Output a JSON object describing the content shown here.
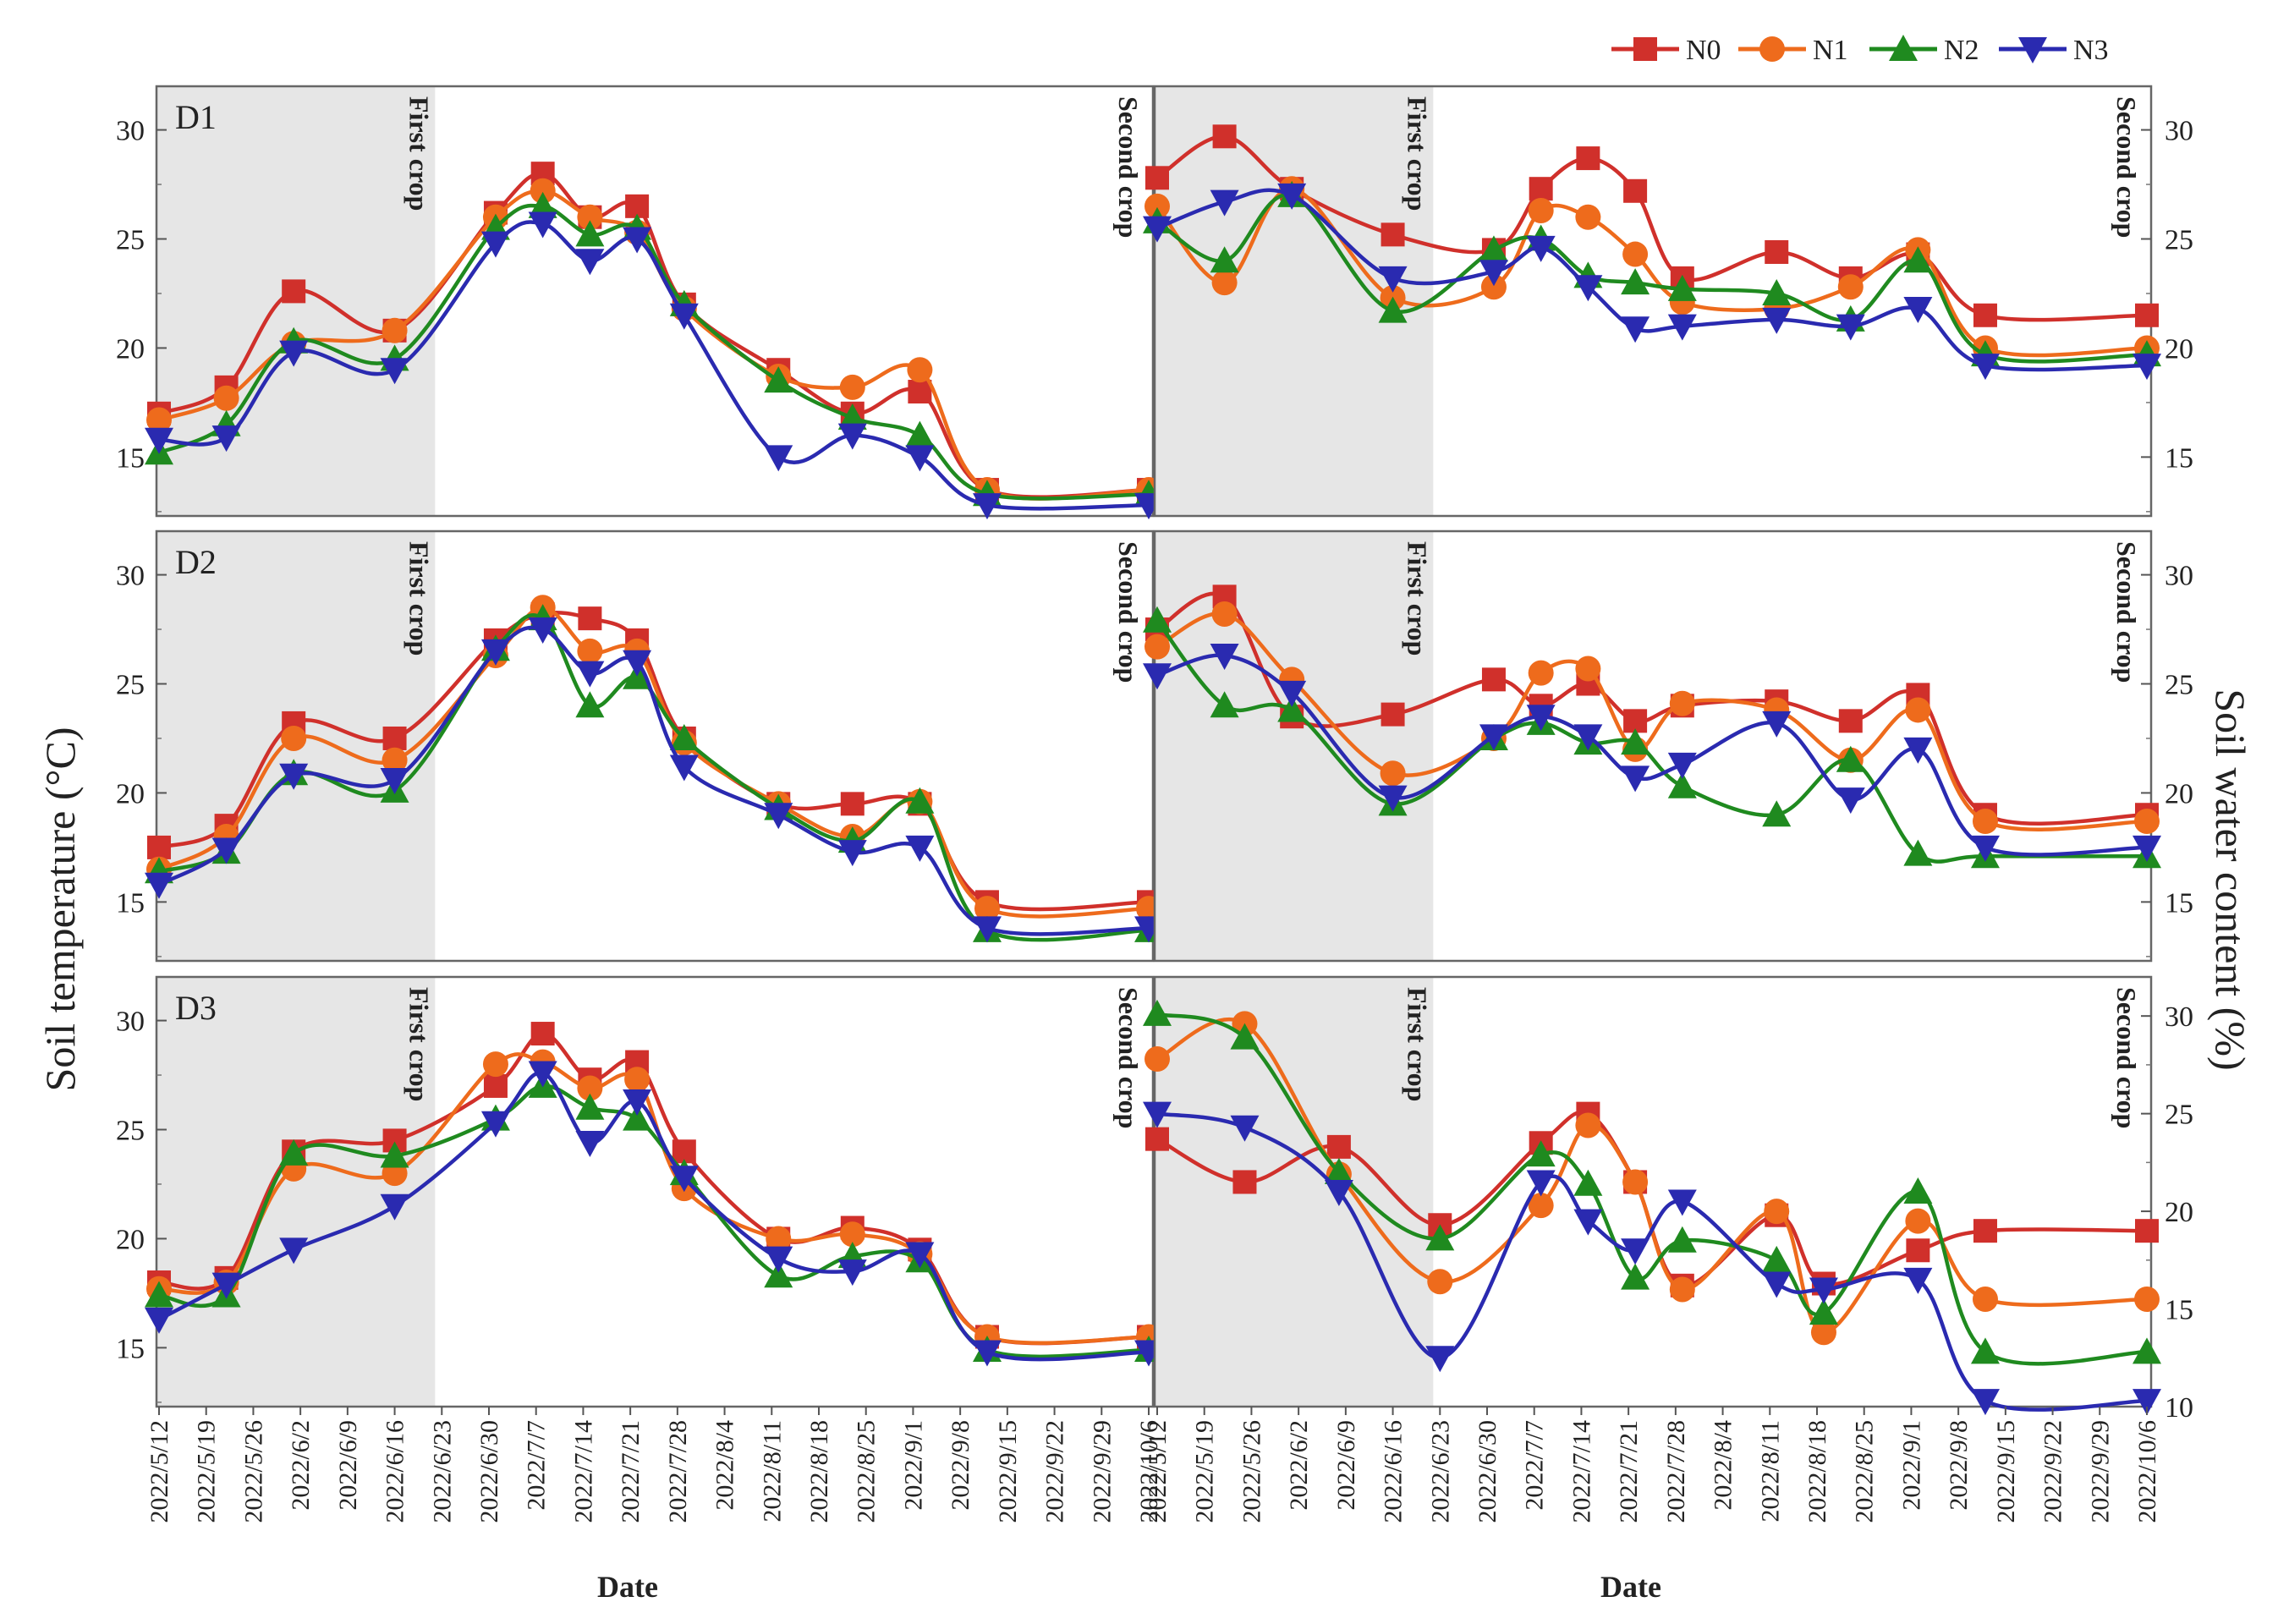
{
  "chart_data": {
    "type": "line",
    "legend": [
      "N0",
      "N1",
      "N2",
      "N3"
    ],
    "colors": {
      "N0": "#d0302b",
      "N1": "#ee6b1c",
      "N2": "#1f8a1f",
      "N3": "#2a2ab0"
    },
    "markers": {
      "N0": "square",
      "N1": "circle",
      "N2": "triangle-up",
      "N3": "triangle-down"
    },
    "xlabel": "Date",
    "ylabel_left": "Soil temperature (°C)",
    "ylabel_right": "Soil water content (%)",
    "x_tick_labels": [
      "2022/5/12",
      "2022/5/19",
      "2022/5/26",
      "2022/6/2",
      "2022/6/9",
      "2022/6/16",
      "2022/6/23",
      "2022/6/30",
      "2022/7/7",
      "2022/7/14",
      "2022/7/21",
      "2022/7/28",
      "2022/8/4",
      "2022/8/11",
      "2022/8/18",
      "2022/8/25",
      "2022/9/1",
      "2022/9/8",
      "2022/9/15",
      "2022/9/22",
      "2022/9/29",
      "2022/10/6"
    ],
    "x_domain_days": [
      0,
      147
    ],
    "shaded_region_days": [
      0,
      41
    ],
    "shade_label": "First crop",
    "end_label": "Second crop",
    "x_sample_days": [
      0,
      10,
      20,
      27,
      35,
      42,
      50,
      57,
      64,
      77,
      85,
      91,
      100,
      108,
      115,
      122,
      133,
      147
    ],
    "y_tick_labels_top_panels": [
      "15",
      "20",
      "25",
      "30"
    ],
    "y_tick_labels_bottom_right": [
      "10",
      "15",
      "20",
      "25",
      "30"
    ],
    "panels": [
      {
        "label": "D1",
        "measure": "Soil temperature (°C)",
        "ylim": [
          12.3,
          32
        ],
        "x_days": [
          0,
          10,
          20,
          35,
          50,
          57,
          64,
          71,
          78,
          92,
          103,
          113,
          123,
          147
        ],
        "series": [
          {
            "name": "N0",
            "values": [
              17.0,
              18.2,
              22.6,
              20.8,
              26.2,
              28.0,
              26.0,
              26.5,
              22.0,
              19.0,
              17.0,
              18.0,
              13.5,
              13.5
            ]
          },
          {
            "name": "N1",
            "values": [
              16.7,
              17.7,
              20.2,
              20.8,
              26.0,
              27.2,
              26.0,
              25.3,
              21.8,
              18.7,
              18.2,
              19.0,
              13.5,
              13.5
            ]
          },
          {
            "name": "N2",
            "values": [
              15.2,
              16.5,
              20.3,
              19.5,
              25.5,
              26.5,
              25.2,
              25.5,
              22.0,
              18.5,
              16.8,
              16.0,
              13.3,
              13.3
            ]
          },
          {
            "name": "N3",
            "values": [
              15.8,
              15.9,
              19.8,
              19.0,
              24.8,
              25.7,
              24.0,
              25.0,
              21.5,
              15.0,
              16.0,
              15.0,
              12.8,
              12.8
            ]
          }
        ]
      },
      {
        "label": "",
        "measure": "Soil water content (%)",
        "ylim": [
          12.3,
          32
        ],
        "x_days": [
          0,
          10,
          20,
          35,
          50,
          57,
          64,
          71,
          78,
          92,
          103,
          113,
          123,
          147
        ],
        "series": [
          {
            "name": "N0",
            "values": [
              27.8,
              29.7,
              27.3,
              25.2,
              24.5,
              27.3,
              28.7,
              27.2,
              23.2,
              24.4,
              23.2,
              24.3,
              21.5,
              21.5
            ]
          },
          {
            "name": "N1",
            "values": [
              26.5,
              23.0,
              27.3,
              22.3,
              22.8,
              26.3,
              26.0,
              24.3,
              22.1,
              21.8,
              22.8,
              24.5,
              20.0,
              20.0
            ]
          },
          {
            "name": "N2",
            "values": [
              25.8,
              24.0,
              27.0,
              21.7,
              24.5,
              25.0,
              23.3,
              23.0,
              22.7,
              22.5,
              21.3,
              24.0,
              19.7,
              19.7
            ]
          },
          {
            "name": "N3",
            "values": [
              25.5,
              26.7,
              27.0,
              23.2,
              23.5,
              24.6,
              22.8,
              20.9,
              21.0,
              21.3,
              21.0,
              21.8,
              19.2,
              19.2
            ]
          }
        ]
      },
      {
        "label": "D2",
        "measure": "Soil temperature (°C)",
        "ylim": [
          12.3,
          32
        ],
        "x_days": [
          0,
          10,
          20,
          35,
          50,
          57,
          64,
          71,
          78,
          92,
          103,
          113,
          123,
          147
        ],
        "series": [
          {
            "name": "N0",
            "values": [
              17.5,
              18.5,
              23.2,
              22.5,
              27.0,
              28.2,
              28.0,
              27.0,
              22.5,
              19.5,
              19.5,
              19.5,
              15.0,
              15.0
            ]
          },
          {
            "name": "N1",
            "values": [
              16.5,
              18.0,
              22.5,
              21.5,
              26.3,
              28.5,
              26.5,
              26.5,
              22.3,
              19.5,
              18.0,
              19.6,
              14.7,
              14.7
            ]
          },
          {
            "name": "N2",
            "values": [
              16.4,
              17.3,
              20.9,
              20.1,
              26.6,
              28.0,
              24.0,
              25.3,
              22.5,
              19.3,
              17.8,
              19.6,
              13.7,
              13.7
            ]
          },
          {
            "name": "N3",
            "values": [
              15.8,
              17.4,
              20.8,
              20.6,
              26.5,
              27.5,
              25.5,
              26.0,
              21.2,
              19.0,
              17.3,
              17.5,
              13.8,
              13.8
            ]
          }
        ]
      },
      {
        "label": "",
        "measure": "Soil water content (%)",
        "ylim": [
          12.3,
          32
        ],
        "x_days": [
          0,
          10,
          20,
          35,
          50,
          57,
          64,
          71,
          78,
          92,
          103,
          113,
          123,
          147
        ],
        "series": [
          {
            "name": "N0",
            "values": [
              27.5,
              29.0,
              23.5,
              23.6,
              25.2,
              24.0,
              25.0,
              23.3,
              24.0,
              24.2,
              23.3,
              24.5,
              19.0,
              19.0
            ]
          },
          {
            "name": "N1",
            "values": [
              26.7,
              28.2,
              25.2,
              20.9,
              22.5,
              25.5,
              25.7,
              22.0,
              24.1,
              23.8,
              21.5,
              23.8,
              18.7,
              18.7
            ]
          },
          {
            "name": "N2",
            "values": [
              27.9,
              24.0,
              23.8,
              19.5,
              22.5,
              23.2,
              22.3,
              22.3,
              20.3,
              19.0,
              21.5,
              17.2,
              17.1,
              17.1
            ]
          },
          {
            "name": "N3",
            "values": [
              25.4,
              26.3,
              24.6,
              19.8,
              22.6,
              23.5,
              22.6,
              20.7,
              21.3,
              23.2,
              19.7,
              22.0,
              17.5,
              17.5
            ]
          }
        ]
      },
      {
        "label": "D3",
        "measure": "Soil temperature (°C)",
        "ylim": [
          12.3,
          32
        ],
        "x_days": [
          0,
          10,
          20,
          35,
          50,
          57,
          64,
          71,
          78,
          92,
          103,
          113,
          123,
          147
        ],
        "series": [
          {
            "name": "N0",
            "values": [
              18.0,
              18.2,
              24.0,
              24.5,
              27.0,
              29.4,
              27.3,
              28.1,
              24.0,
              20.0,
              20.5,
              19.5,
              15.5,
              15.5
            ]
          },
          {
            "name": "N1",
            "values": [
              17.7,
              18.0,
              23.2,
              23.0,
              28.0,
              28.1,
              26.9,
              27.3,
              22.3,
              20.0,
              20.2,
              19.3,
              15.5,
              15.5
            ]
          },
          {
            "name": "N2",
            "values": [
              17.4,
              17.4,
              23.9,
              23.8,
              25.5,
              27.0,
              26.0,
              25.5,
              23.0,
              18.3,
              19.2,
              19.0,
              14.9,
              14.9
            ]
          },
          {
            "name": "N3",
            "values": [
              16.3,
              17.9,
              19.5,
              21.5,
              25.3,
              27.6,
              24.4,
              26.3,
              22.8,
              19.1,
              18.5,
              19.3,
              14.8,
              14.8
            ]
          }
        ]
      },
      {
        "label": "",
        "measure": "Soil water content (%)",
        "ylim": [
          10,
          32
        ],
        "x_days": [
          0,
          13,
          27,
          42,
          57,
          64,
          71,
          78,
          92,
          99,
          113,
          123,
          147
        ],
        "series": [
          {
            "name": "N0",
            "values": [
              23.7,
              21.5,
              23.3,
              19.3,
              23.5,
              25.0,
              21.5,
              16.2,
              19.8,
              16.3,
              18.0,
              19.0,
              19.0
            ]
          },
          {
            "name": "N1",
            "values": [
              27.8,
              29.6,
              21.9,
              16.4,
              20.3,
              24.4,
              21.5,
              16.0,
              20.0,
              13.8,
              19.5,
              15.5,
              15.5
            ]
          },
          {
            "name": "N2",
            "values": [
              30.1,
              28.9,
              22.0,
              18.6,
              22.9,
              21.4,
              16.6,
              18.5,
              17.5,
              14.8,
              21.0,
              12.8,
              12.8
            ]
          },
          {
            "name": "N3",
            "values": [
              25.0,
              24.3,
              21.0,
              12.5,
              21.5,
              19.5,
              18.0,
              20.5,
              16.3,
              16.0,
              16.5,
              10.3,
              10.3
            ]
          }
        ]
      }
    ]
  }
}
